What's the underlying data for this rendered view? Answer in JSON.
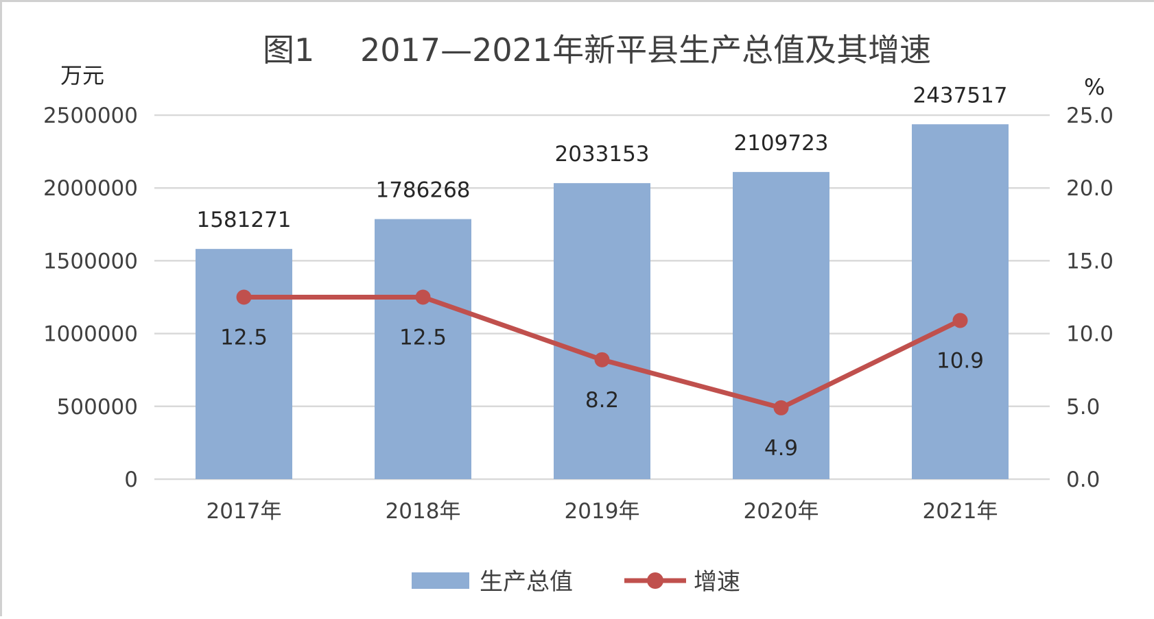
{
  "chart_data": {
    "type": "bar+line",
    "title": "图1 2017—2021年新平县生产总值及其增速",
    "title_parts": [
      "图1",
      "2017—2021年新平县生产总值及其增速"
    ],
    "categories": [
      "2017年",
      "2018年",
      "2019年",
      "2020年",
      "2021年"
    ],
    "y_left": {
      "unit": "万元",
      "ylim": [
        0,
        2500000
      ],
      "ticks": [
        "0",
        "500000",
        "1000000",
        "1500000",
        "2000000",
        "2500000"
      ]
    },
    "y_right": {
      "unit": "%",
      "ylim": [
        0,
        25
      ],
      "ticks": [
        "0.0",
        "5.0",
        "10.0",
        "15.0",
        "20.0",
        "25.0"
      ]
    },
    "series": [
      {
        "name": "生产总值",
        "type": "bar",
        "axis": "left",
        "color": "#8eadd4",
        "values": [
          1581271,
          1786268,
          2033153,
          2109723,
          2437517
        ],
        "labels": [
          "1581271",
          "1786268",
          "2033153",
          "2109723",
          "2437517"
        ]
      },
      {
        "name": "增速",
        "type": "line",
        "axis": "right",
        "color": "#c0504d",
        "values": [
          12.5,
          12.5,
          8.2,
          4.9,
          10.9
        ],
        "labels": [
          "12.5",
          "12.5",
          "8.2",
          "4.9",
          "10.9"
        ]
      }
    ],
    "grid": true,
    "legend": "bottom"
  }
}
